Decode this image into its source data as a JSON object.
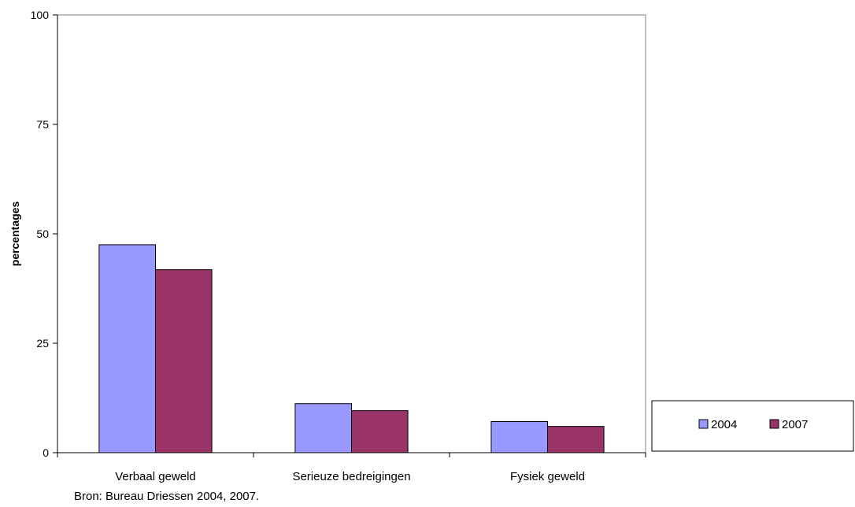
{
  "chart_data": {
    "type": "bar",
    "categories": [
      "Verbaal geweld",
      "Serieuze bedreigingen",
      "Fysiek geweld"
    ],
    "series": [
      {
        "name": "2004",
        "values": [
          47.5,
          11.2,
          7.1
        ],
        "color": "#9999FF"
      },
      {
        "name": "2007",
        "values": [
          41.8,
          9.6,
          6.0
        ],
        "color": "#993366"
      }
    ],
    "title": "",
    "xlabel": "",
    "ylabel": "percentages",
    "ylim": [
      0,
      100
    ],
    "yticks": [
      0,
      25,
      50,
      75,
      100
    ],
    "grid": false,
    "legend_position": "right"
  },
  "source_note": "Bron: Bureau Driessen 2004, 2007."
}
